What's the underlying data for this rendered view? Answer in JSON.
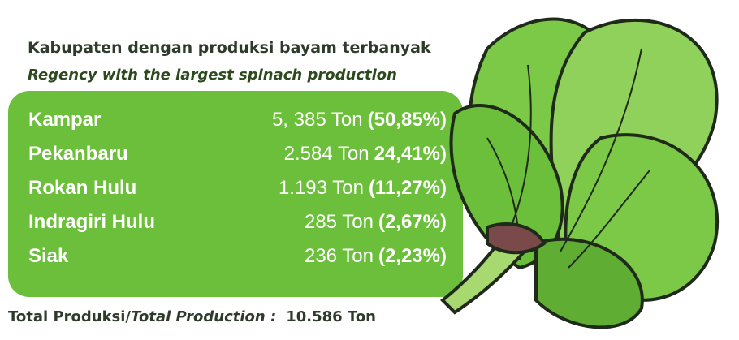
{
  "header": {
    "title": "Kabupaten dengan produksi bayam terbanyak",
    "subtitle": "Regency with the largest spinach production"
  },
  "table": {
    "rows": [
      [
        "Kampar",
        "5, 385 Ton",
        "(50,85%)"
      ],
      [
        "Pekanbaru",
        "2.584 Ton",
        "24,41%)"
      ],
      [
        "Rokan Hulu",
        "1.193 Ton",
        "(11,27%)"
      ],
      [
        "Indragiri Hulu",
        "285 Ton",
        "(2,67%)"
      ],
      [
        "Siak",
        "236 Ton",
        "(2,23%)"
      ]
    ]
  },
  "footer": {
    "label": "Total Produksi/",
    "label_en": "Total Production :",
    "value": "10.586 Ton"
  }
}
